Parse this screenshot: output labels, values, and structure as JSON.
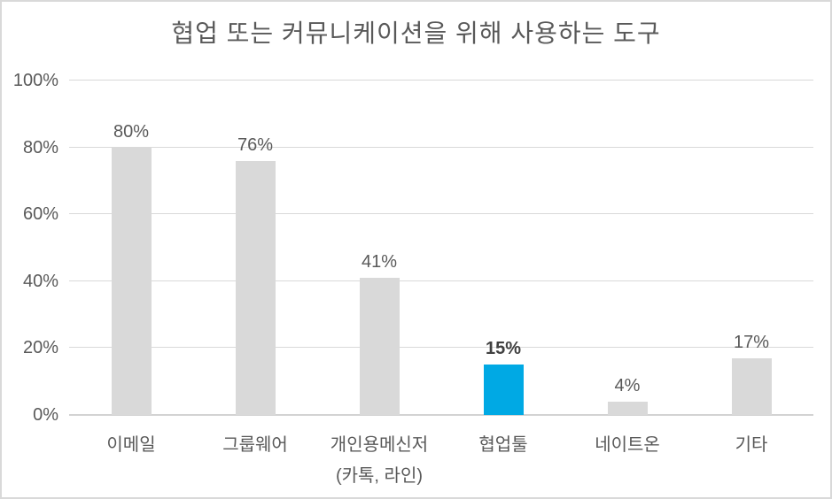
{
  "chart_data": {
    "type": "bar",
    "title": "협업 또는 커뮤니케이션을 위해 사용하는 도구",
    "categories": [
      "이메일",
      "그룹웨어",
      "개인용메신저\n(카톡, 라인)",
      "협업툴",
      "네이트온",
      "기타"
    ],
    "values": [
      80,
      76,
      41,
      15,
      4,
      17
    ],
    "data_labels": [
      "80%",
      "76%",
      "41%",
      "15%",
      "4%",
      "17%"
    ],
    "highlight_index": 3,
    "xlabel": "",
    "ylabel": "",
    "ylim": [
      0,
      100
    ],
    "y_tick_values": [
      0,
      20,
      40,
      60,
      80,
      100
    ],
    "y_tick_labels": [
      "0%",
      "20%",
      "40%",
      "60%",
      "80%",
      "100%"
    ],
    "grid": true,
    "legend_position": "none",
    "colors": {
      "bar_default": "#d9d9d9",
      "bar_highlight": "#00a9e4",
      "gridline": "#d9d9d9",
      "axis_line": "#d3d3d3",
      "label_text": "#595959",
      "highlight_label_text": "#404040",
      "background": "#ffffff",
      "frame_border": "#d9d9d9"
    }
  }
}
